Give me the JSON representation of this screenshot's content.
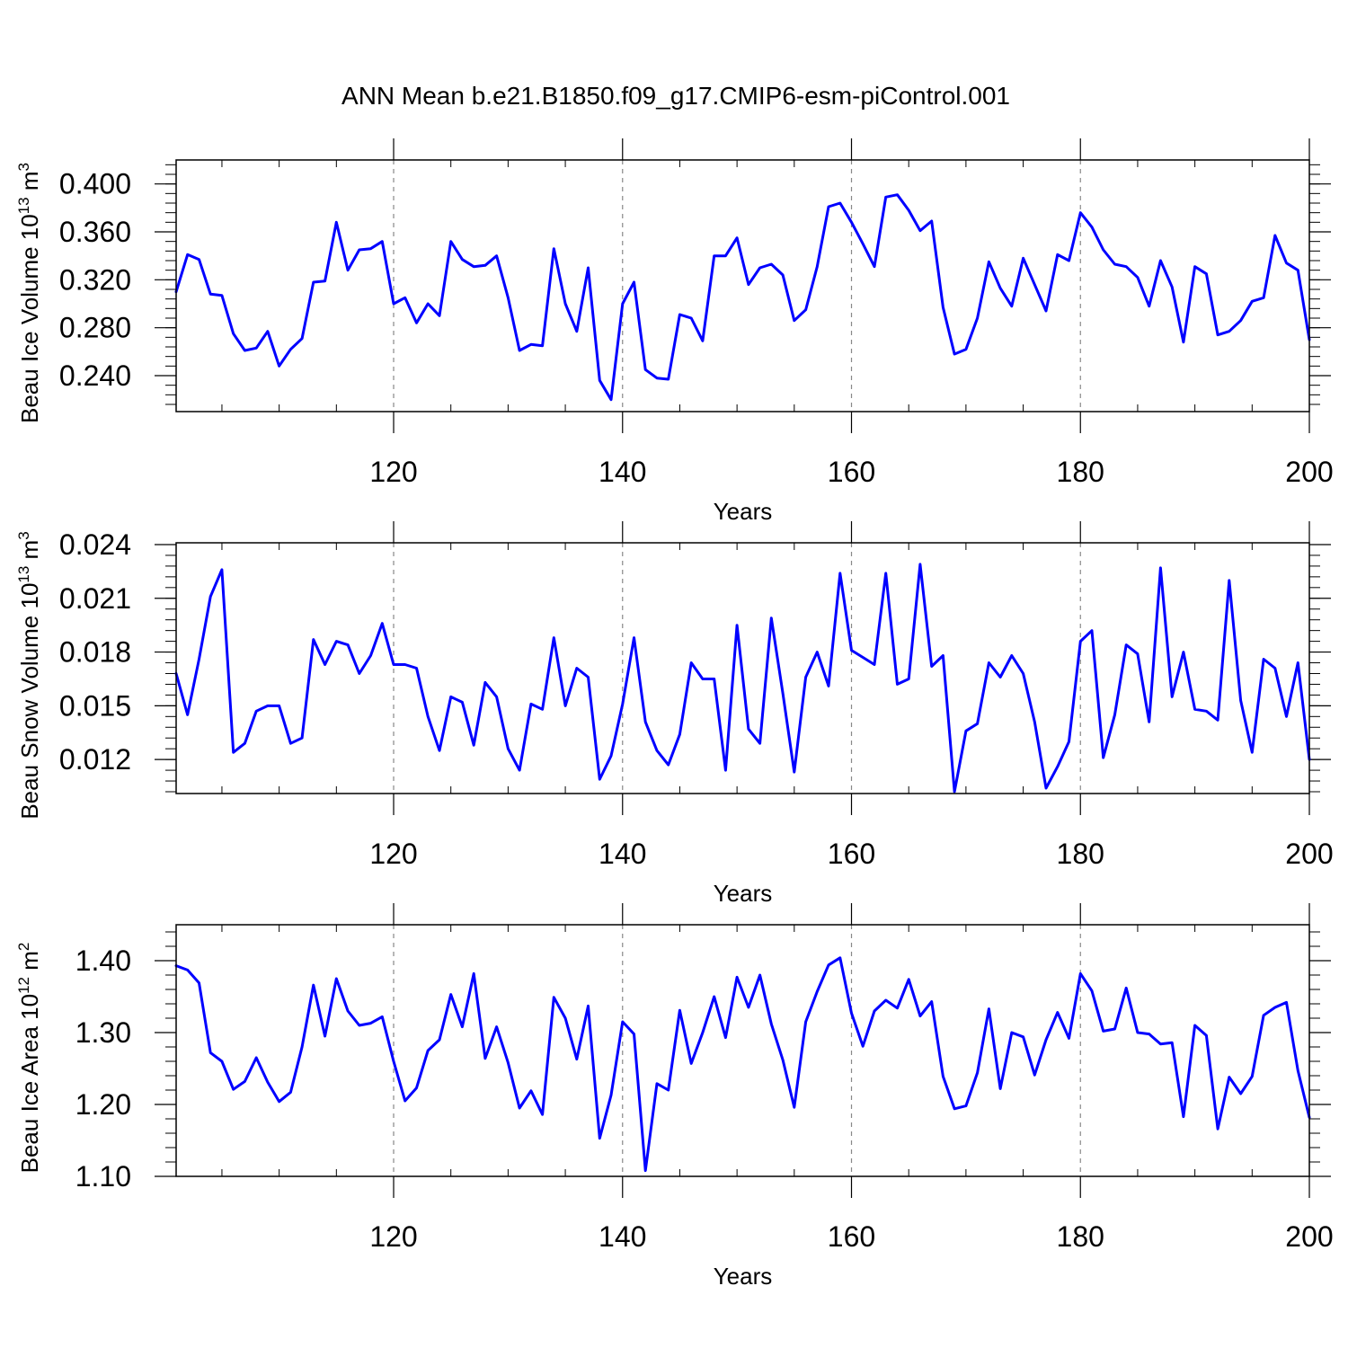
{
  "title": "ANN Mean b.e21.B1850.f09_g17.CMIP6-esm-piControl.001",
  "chart_data": [
    {
      "type": "line",
      "title": "",
      "xlabel": "Years",
      "ylabel": {
        "base": "Beau Ice Volume 10",
        "sup1": "13",
        "mid": " m",
        "sup2": "3"
      },
      "xlim": [
        101,
        200
      ],
      "ylim": [
        0.21,
        0.42
      ],
      "yticks": [
        0.24,
        0.28,
        0.32,
        0.36,
        0.4
      ],
      "ytick_labels": [
        "0.240",
        "0.280",
        "0.320",
        "0.360",
        "0.400"
      ],
      "xticks": [
        120,
        140,
        160,
        180,
        200
      ],
      "xtick_labels": [
        "120",
        "140",
        "160",
        "180",
        "200"
      ],
      "grid_x": [
        120,
        140,
        160,
        180
      ],
      "line_color": "#0000ff",
      "series": [
        {
          "name": "Beau Ice Volume",
          "x": [
            101,
            102,
            103,
            104,
            105,
            106,
            107,
            108,
            109,
            110,
            111,
            112,
            113,
            114,
            115,
            116,
            117,
            118,
            119,
            120,
            121,
            122,
            123,
            124,
            125,
            126,
            127,
            128,
            129,
            130,
            131,
            132,
            133,
            134,
            135,
            136,
            137,
            138,
            139,
            140,
            141,
            142,
            143,
            144,
            145,
            146,
            147,
            148,
            149,
            150,
            151,
            152,
            153,
            154,
            155,
            156,
            157,
            158,
            159,
            160,
            161,
            162,
            163,
            164,
            165,
            166,
            167,
            168,
            169,
            170,
            171,
            172,
            173,
            174,
            175,
            176,
            177,
            178,
            179,
            180,
            181,
            182,
            183,
            184,
            185,
            186,
            187,
            188,
            189,
            190,
            191,
            192,
            193,
            194,
            195,
            196,
            197,
            198,
            199,
            200
          ],
          "values": [
            0.31,
            0.341,
            0.337,
            0.308,
            0.307,
            0.275,
            0.261,
            0.263,
            0.277,
            0.248,
            0.262,
            0.271,
            0.318,
            0.319,
            0.368,
            0.328,
            0.345,
            0.346,
            0.352,
            0.3,
            0.305,
            0.284,
            0.3,
            0.29,
            0.352,
            0.337,
            0.331,
            0.332,
            0.34,
            0.305,
            0.261,
            0.266,
            0.265,
            0.346,
            0.3,
            0.277,
            0.33,
            0.236,
            0.22,
            0.3,
            0.318,
            0.245,
            0.238,
            0.237,
            0.291,
            0.288,
            0.269,
            0.34,
            0.34,
            0.355,
            0.316,
            0.33,
            0.333,
            0.324,
            0.286,
            0.295,
            0.331,
            0.381,
            0.384,
            0.368,
            0.35,
            0.331,
            0.389,
            0.391,
            0.378,
            0.361,
            0.369,
            0.297,
            0.258,
            0.262,
            0.288,
            0.335,
            0.313,
            0.298,
            0.338,
            0.316,
            0.294,
            0.341,
            0.336,
            0.376,
            0.364,
            0.345,
            0.333,
            0.331,
            0.322,
            0.298,
            0.336,
            0.314,
            0.268,
            0.331,
            0.325,
            0.274,
            0.277,
            0.286,
            0.302,
            0.305,
            0.357,
            0.334,
            0.328,
            0.27
          ]
        }
      ]
    },
    {
      "type": "line",
      "title": "",
      "xlabel": "Years",
      "ylabel": {
        "base": "Beau Snow Volume 10",
        "sup1": "13",
        "mid": " m",
        "sup2": "3"
      },
      "xlim": [
        101,
        200
      ],
      "ylim": [
        0.0101,
        0.0241
      ],
      "yticks": [
        0.012,
        0.015,
        0.018,
        0.021,
        0.024
      ],
      "ytick_labels": [
        "0.012",
        "0.015",
        "0.018",
        "0.021",
        "0.024"
      ],
      "xticks": [
        120,
        140,
        160,
        180,
        200
      ],
      "xtick_labels": [
        "120",
        "140",
        "160",
        "180",
        "200"
      ],
      "grid_x": [
        120,
        140,
        160,
        180
      ],
      "line_color": "#0000ff",
      "series": [
        {
          "name": "Beau Snow Volume",
          "x": [
            101,
            102,
            103,
            104,
            105,
            106,
            107,
            108,
            109,
            110,
            111,
            112,
            113,
            114,
            115,
            116,
            117,
            118,
            119,
            120,
            121,
            122,
            123,
            124,
            125,
            126,
            127,
            128,
            129,
            130,
            131,
            132,
            133,
            134,
            135,
            136,
            137,
            138,
            139,
            140,
            141,
            142,
            143,
            144,
            145,
            146,
            147,
            148,
            149,
            150,
            151,
            152,
            153,
            154,
            155,
            156,
            157,
            158,
            159,
            160,
            161,
            162,
            163,
            164,
            165,
            166,
            167,
            168,
            169,
            170,
            171,
            172,
            173,
            174,
            175,
            176,
            177,
            178,
            179,
            180,
            181,
            182,
            183,
            184,
            185,
            186,
            187,
            188,
            189,
            190,
            191,
            192,
            193,
            194,
            195,
            196,
            197,
            198,
            199,
            200
          ],
          "values": [
            0.0168,
            0.0145,
            0.0176,
            0.0211,
            0.0226,
            0.0124,
            0.0129,
            0.0147,
            0.015,
            0.015,
            0.0129,
            0.0132,
            0.0187,
            0.0173,
            0.0186,
            0.0184,
            0.0168,
            0.0178,
            0.0196,
            0.0173,
            0.0173,
            0.0171,
            0.0144,
            0.0125,
            0.0155,
            0.0152,
            0.0128,
            0.0163,
            0.0155,
            0.0126,
            0.0114,
            0.0151,
            0.0148,
            0.0188,
            0.015,
            0.0171,
            0.0166,
            0.0109,
            0.0122,
            0.0151,
            0.0188,
            0.0141,
            0.0125,
            0.0117,
            0.0134,
            0.0174,
            0.0165,
            0.0165,
            0.0114,
            0.0195,
            0.0137,
            0.0129,
            0.0199,
            0.0157,
            0.0113,
            0.0166,
            0.018,
            0.0161,
            0.0224,
            0.0181,
            0.0177,
            0.0173,
            0.0224,
            0.0162,
            0.0165,
            0.0229,
            0.0172,
            0.0178,
            0.0102,
            0.0136,
            0.014,
            0.0174,
            0.0166,
            0.0178,
            0.0168,
            0.0141,
            0.0104,
            0.0116,
            0.013,
            0.0186,
            0.0192,
            0.0121,
            0.0145,
            0.0184,
            0.0179,
            0.0141,
            0.0227,
            0.0155,
            0.018,
            0.0148,
            0.0147,
            0.0142,
            0.022,
            0.0153,
            0.0124,
            0.0176,
            0.0171,
            0.0144,
            0.0174,
            0.012
          ]
        }
      ]
    },
    {
      "type": "line",
      "title": "",
      "xlabel": "Years",
      "ylabel": {
        "base": "Beau Ice Area 10",
        "sup1": "12",
        "mid": " m",
        "sup2": "2"
      },
      "xlim": [
        101,
        200
      ],
      "ylim": [
        1.1,
        1.45
      ],
      "yticks": [
        1.1,
        1.2,
        1.3,
        1.4
      ],
      "ytick_labels": [
        "1.10",
        "1.20",
        "1.30",
        "1.40"
      ],
      "xticks": [
        120,
        140,
        160,
        180,
        200
      ],
      "xtick_labels": [
        "120",
        "140",
        "160",
        "180",
        "200"
      ],
      "grid_x": [
        120,
        140,
        160,
        180
      ],
      "line_color": "#0000ff",
      "series": [
        {
          "name": "Beau Ice Area",
          "x": [
            101,
            102,
            103,
            104,
            105,
            106,
            107,
            108,
            109,
            110,
            111,
            112,
            113,
            114,
            115,
            116,
            117,
            118,
            119,
            120,
            121,
            122,
            123,
            124,
            125,
            126,
            127,
            128,
            129,
            130,
            131,
            132,
            133,
            134,
            135,
            136,
            137,
            138,
            139,
            140,
            141,
            142,
            143,
            144,
            145,
            146,
            147,
            148,
            149,
            150,
            151,
            152,
            153,
            154,
            155,
            156,
            157,
            158,
            159,
            160,
            161,
            162,
            163,
            164,
            165,
            166,
            167,
            168,
            169,
            170,
            171,
            172,
            173,
            174,
            175,
            176,
            177,
            178,
            179,
            180,
            181,
            182,
            183,
            184,
            185,
            186,
            187,
            188,
            189,
            190,
            191,
            192,
            193,
            194,
            195,
            196,
            197,
            198,
            199,
            200
          ],
          "values": [
            1.393,
            1.387,
            1.369,
            1.272,
            1.26,
            1.221,
            1.232,
            1.265,
            1.231,
            1.204,
            1.217,
            1.28,
            1.366,
            1.295,
            1.375,
            1.33,
            1.31,
            1.313,
            1.322,
            1.26,
            1.205,
            1.223,
            1.275,
            1.29,
            1.353,
            1.308,
            1.382,
            1.264,
            1.308,
            1.258,
            1.195,
            1.219,
            1.186,
            1.349,
            1.32,
            1.263,
            1.337,
            1.153,
            1.213,
            1.315,
            1.298,
            1.108,
            1.229,
            1.22,
            1.331,
            1.257,
            1.3,
            1.35,
            1.293,
            1.377,
            1.335,
            1.38,
            1.312,
            1.262,
            1.196,
            1.315,
            1.357,
            1.394,
            1.404,
            1.327,
            1.281,
            1.33,
            1.345,
            1.334,
            1.374,
            1.323,
            1.343,
            1.239,
            1.194,
            1.198,
            1.244,
            1.333,
            1.222,
            1.3,
            1.294,
            1.241,
            1.29,
            1.328,
            1.292,
            1.382,
            1.358,
            1.302,
            1.305,
            1.362,
            1.3,
            1.298,
            1.284,
            1.286,
            1.183,
            1.31,
            1.296,
            1.166,
            1.238,
            1.215,
            1.239,
            1.324,
            1.335,
            1.342,
            1.247,
            1.182
          ]
        }
      ]
    }
  ]
}
